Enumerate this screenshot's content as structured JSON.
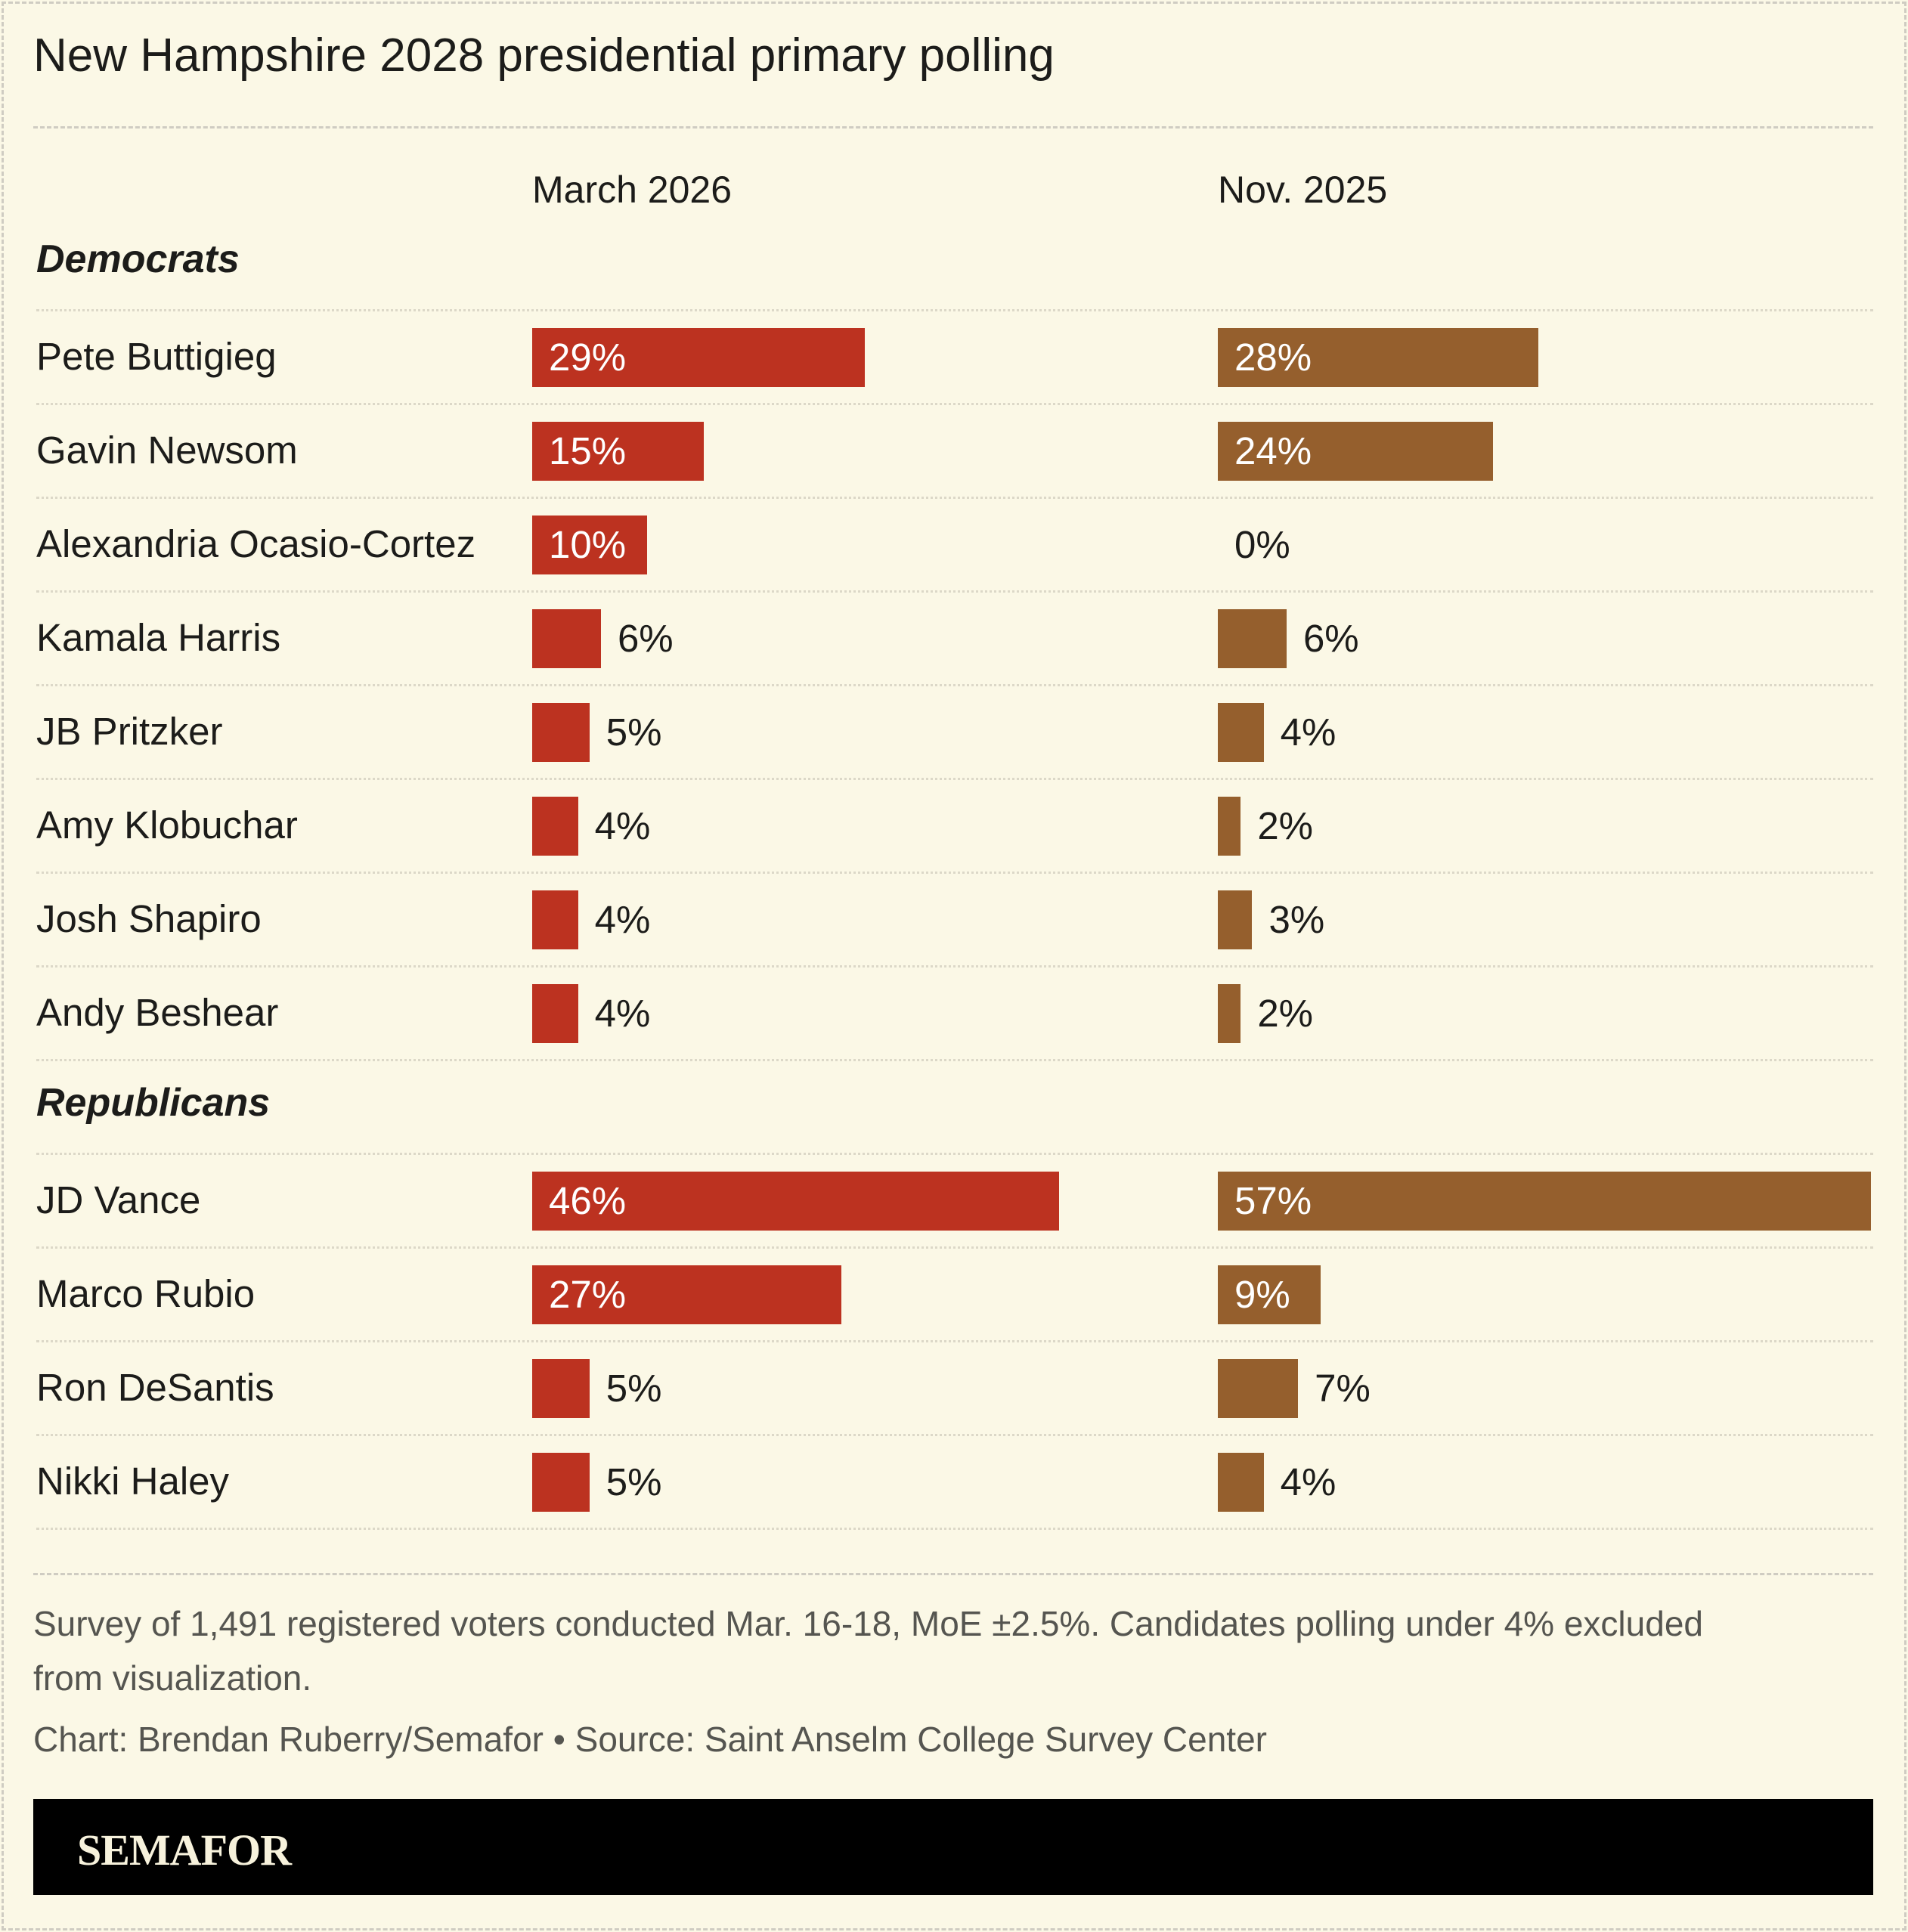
{
  "title": "New Hampshire 2028 presidential primary polling",
  "chart_data": {
    "type": "bar",
    "title": "New Hampshire 2028 presidential primary polling",
    "columns": [
      "March 2026",
      "Nov. 2025"
    ],
    "colors": {
      "March 2026": "#bc3220",
      "Nov. 2025": "#955f2d"
    },
    "unit": "%",
    "groups": [
      {
        "name": "Democrats",
        "rows": [
          {
            "candidate": "Pete Buttigieg",
            "values": [
              29,
              28
            ]
          },
          {
            "candidate": "Gavin Newsom",
            "values": [
              15,
              24
            ]
          },
          {
            "candidate": "Alexandria Ocasio-Cortez",
            "values": [
              10,
              0
            ]
          },
          {
            "candidate": "Kamala Harris",
            "values": [
              6,
              6
            ]
          },
          {
            "candidate": "JB Pritzker",
            "values": [
              5,
              4
            ]
          },
          {
            "candidate": "Amy Klobuchar",
            "values": [
              4,
              2
            ]
          },
          {
            "candidate": "Josh Shapiro",
            "values": [
              4,
              3
            ]
          },
          {
            "candidate": "Andy Beshear",
            "values": [
              4,
              2
            ]
          }
        ]
      },
      {
        "name": "Republicans",
        "rows": [
          {
            "candidate": "JD Vance",
            "values": [
              46,
              57
            ]
          },
          {
            "candidate": "Marco Rubio",
            "values": [
              27,
              9
            ]
          },
          {
            "candidate": "Ron DeSantis",
            "values": [
              5,
              7
            ]
          },
          {
            "candidate": "Nikki Haley",
            "values": [
              5,
              4
            ]
          }
        ]
      }
    ],
    "xlim": [
      0,
      57
    ]
  },
  "footer": {
    "note": "Survey of 1,491 registered voters conducted Mar. 16-18, MoE ±2.5%. Candidates polling under 4% excluded from visualization.",
    "credit": "Chart: Brendan Ruberry/Semafor • Source: Saint Anselm College Survey Center",
    "logo": "SEMAFOR"
  }
}
